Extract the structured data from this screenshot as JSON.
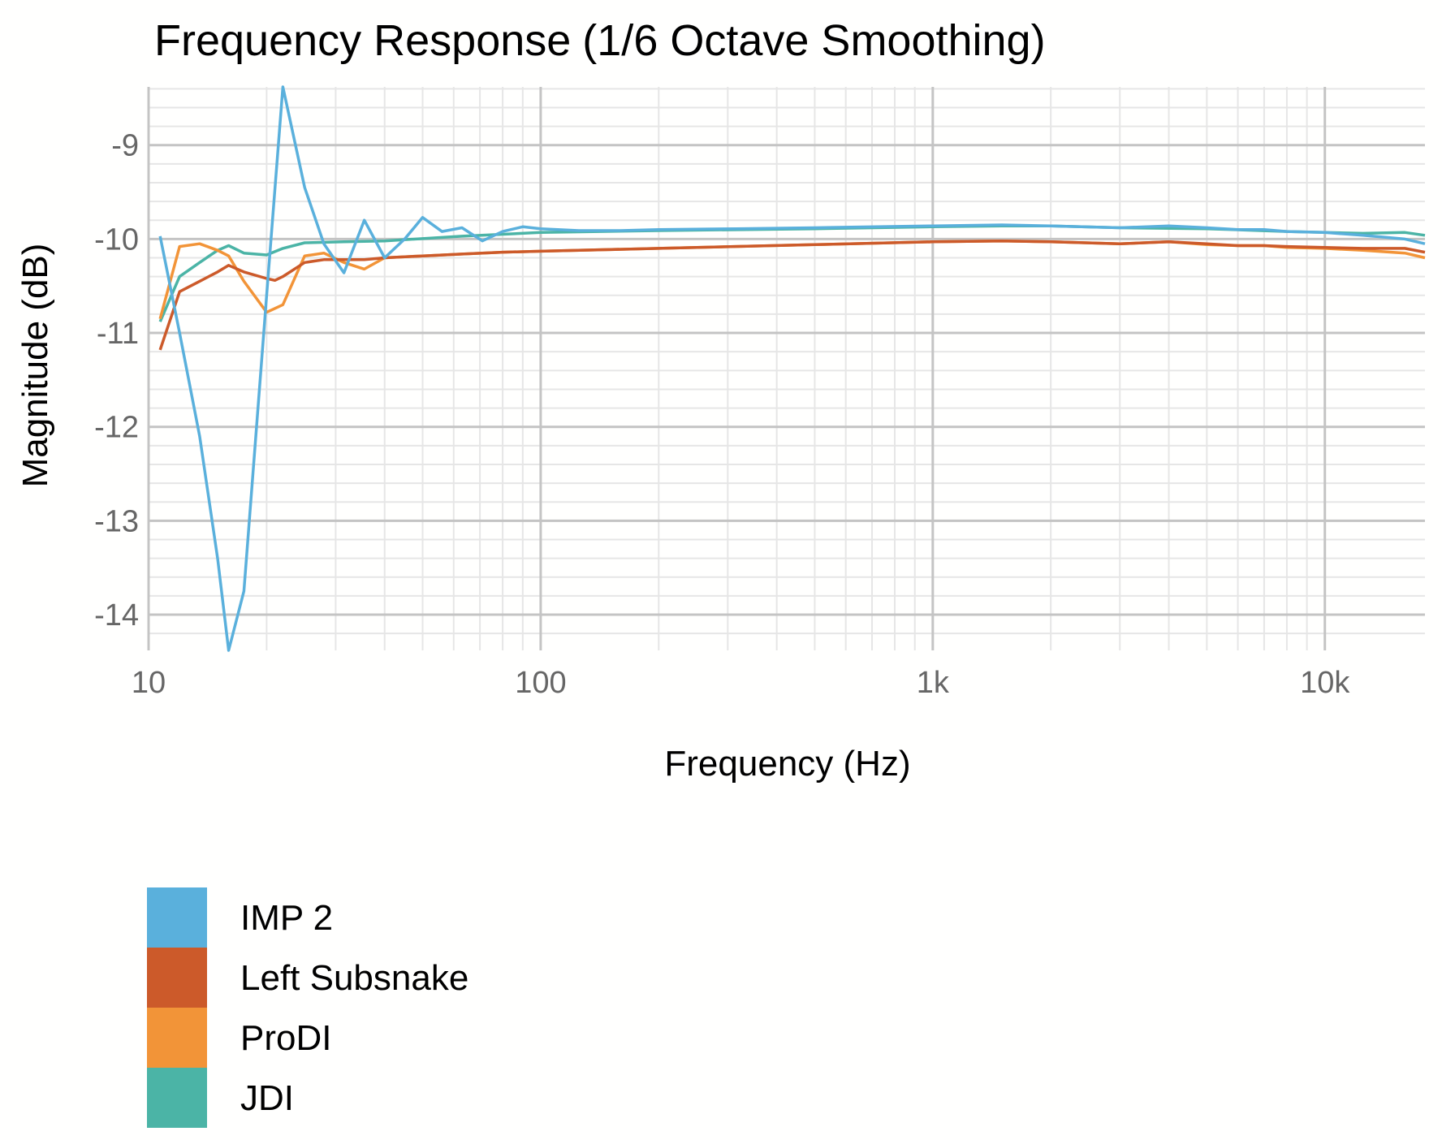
{
  "chart_data": {
    "type": "line",
    "title": "Frequency Response",
    "subtitle": "(1/6 Octave Smoothing)",
    "xlabel": "Frequency (Hz)",
    "ylabel": "Magnitude (dB)",
    "x_scale": "log",
    "xlim": [
      10,
      18000
    ],
    "ylim": [
      -14.38,
      -8.38
    ],
    "x_ticks": [
      {
        "value": 10,
        "label": "10"
      },
      {
        "value": 100,
        "label": "100"
      },
      {
        "value": 1000,
        "label": "1k"
      },
      {
        "value": 10000,
        "label": "10k"
      }
    ],
    "y_ticks": [
      {
        "value": -9,
        "label": "-9"
      },
      {
        "value": -10,
        "label": "-10"
      },
      {
        "value": -11,
        "label": "-11"
      },
      {
        "value": -12,
        "label": "-12"
      },
      {
        "value": -13,
        "label": "-13"
      },
      {
        "value": -14,
        "label": "-14"
      }
    ],
    "grid": true,
    "legend_position": "bottom-left",
    "series": [
      {
        "name": "IMP 2",
        "color": "#5ab0dc",
        "x": [
          10.7,
          12,
          13.5,
          15,
          16,
          17.5,
          20,
          22,
          25,
          28,
          31.5,
          35.5,
          40,
          45,
          50,
          56,
          63,
          71,
          80,
          90,
          100,
          125,
          160,
          200,
          315,
          500,
          1000,
          1500,
          2000,
          3000,
          4000,
          5000,
          6000,
          7000,
          8000,
          10000,
          12500,
          16000,
          18000
        ],
        "y": [
          -9.97,
          -11.0,
          -12.1,
          -13.4,
          -14.38,
          -13.75,
          -10.6,
          -8.38,
          -9.45,
          -10.05,
          -10.36,
          -9.8,
          -10.2,
          -10.0,
          -9.77,
          -9.92,
          -9.88,
          -10.02,
          -9.92,
          -9.87,
          -9.89,
          -9.91,
          -9.91,
          -9.9,
          -9.89,
          -9.88,
          -9.86,
          -9.85,
          -9.86,
          -9.88,
          -9.86,
          -9.88,
          -9.9,
          -9.9,
          -9.92,
          -9.93,
          -9.96,
          -10.0,
          -10.05
        ]
      },
      {
        "name": "Left Subsnake",
        "color": "#cc5a2a",
        "x": [
          10.7,
          12,
          13.5,
          15,
          16,
          17.5,
          20,
          21,
          22,
          25,
          28,
          31.5,
          35.5,
          40,
          50,
          63,
          80,
          100,
          200,
          500,
          1000,
          1500,
          2000,
          3000,
          4000,
          5000,
          6000,
          7000,
          8000,
          10000,
          12500,
          16000,
          18000
        ],
        "y": [
          -11.18,
          -10.56,
          -10.45,
          -10.35,
          -10.28,
          -10.35,
          -10.42,
          -10.44,
          -10.4,
          -10.25,
          -10.22,
          -10.22,
          -10.22,
          -10.2,
          -10.18,
          -10.16,
          -10.14,
          -10.13,
          -10.1,
          -10.06,
          -10.03,
          -10.02,
          -10.03,
          -10.05,
          -10.03,
          -10.05,
          -10.07,
          -10.07,
          -10.08,
          -10.09,
          -10.1,
          -10.1,
          -10.14
        ]
      },
      {
        "name": "ProDI",
        "color": "#f29438",
        "x": [
          10.7,
          12,
          13.5,
          15,
          16,
          17.5,
          20,
          22,
          25,
          28,
          31.5,
          35.5,
          40,
          50,
          63,
          80,
          100,
          200,
          500,
          1000,
          1500,
          2000,
          3000,
          4000,
          5000,
          6000,
          7000,
          8000,
          10000,
          12500,
          16000,
          18000
        ],
        "y": [
          -10.85,
          -10.08,
          -10.05,
          -10.12,
          -10.18,
          -10.45,
          -10.78,
          -10.7,
          -10.18,
          -10.15,
          -10.25,
          -10.32,
          -10.2,
          -10.18,
          -10.16,
          -10.14,
          -10.13,
          -10.1,
          -10.06,
          -10.03,
          -10.02,
          -10.03,
          -10.05,
          -10.03,
          -10.06,
          -10.07,
          -10.07,
          -10.09,
          -10.1,
          -10.12,
          -10.15,
          -10.2
        ]
      },
      {
        "name": "JDI",
        "color": "#4bb4a6",
        "x": [
          10.7,
          12,
          13.5,
          15,
          16,
          17.5,
          20,
          22,
          25,
          31.5,
          40,
          63,
          100,
          200,
          500,
          1000,
          1500,
          2000,
          3000,
          5000,
          8000,
          12500,
          16000,
          18000
        ],
        "y": [
          -10.88,
          -10.4,
          -10.25,
          -10.12,
          -10.07,
          -10.15,
          -10.17,
          -10.1,
          -10.04,
          -10.03,
          -10.02,
          -9.97,
          -9.93,
          -9.91,
          -9.89,
          -9.87,
          -9.86,
          -9.86,
          -9.88,
          -9.89,
          -9.92,
          -9.94,
          -9.93,
          -9.96
        ]
      }
    ]
  }
}
